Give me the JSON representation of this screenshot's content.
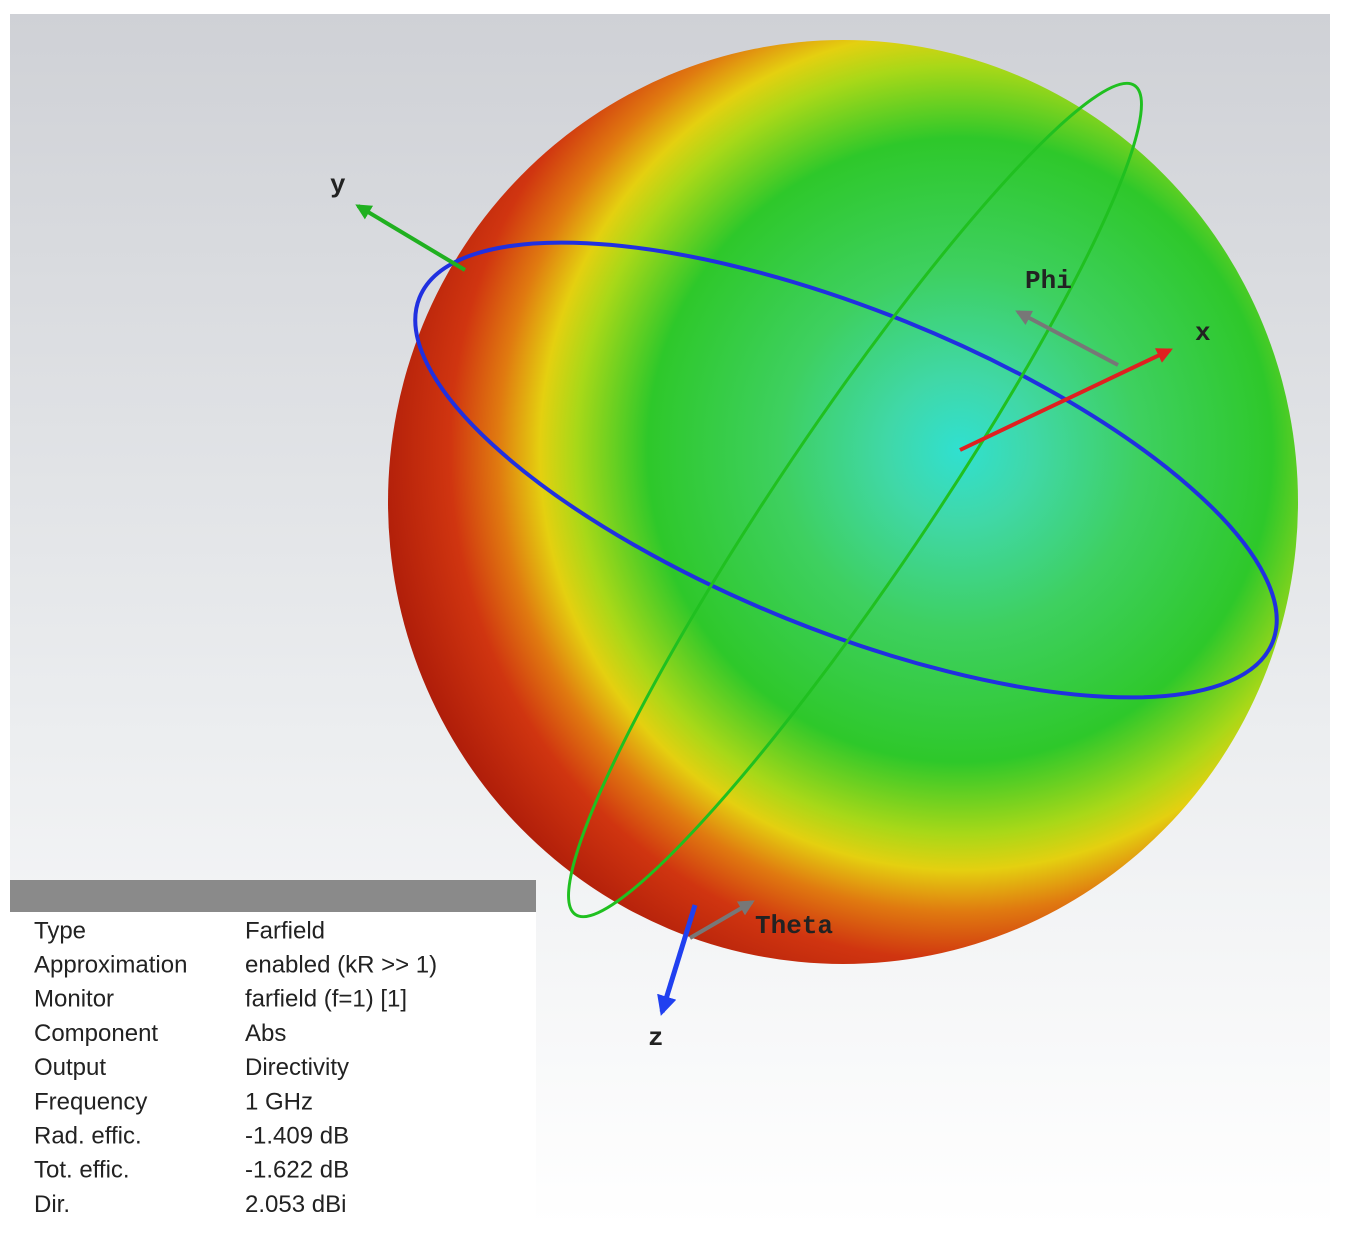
{
  "axes": {
    "x": "x",
    "y": "y",
    "z": "z",
    "phi": "Phi",
    "theta": "Theta"
  },
  "info": {
    "rows": [
      [
        "Type",
        "Farfield"
      ],
      [
        "Approximation",
        "enabled (kR >> 1)"
      ],
      [
        "Monitor",
        "farfield (f=1) [1]"
      ],
      [
        "Component",
        "Abs"
      ],
      [
        "Output",
        "Directivity"
      ],
      [
        "Frequency",
        "1 GHz"
      ],
      [
        "Rad. effic.",
        "-1.409 dB"
      ],
      [
        "Tot. effic.",
        "-1.622 dB"
      ],
      [
        "Dir.",
        "2.053 dBi"
      ]
    ]
  }
}
